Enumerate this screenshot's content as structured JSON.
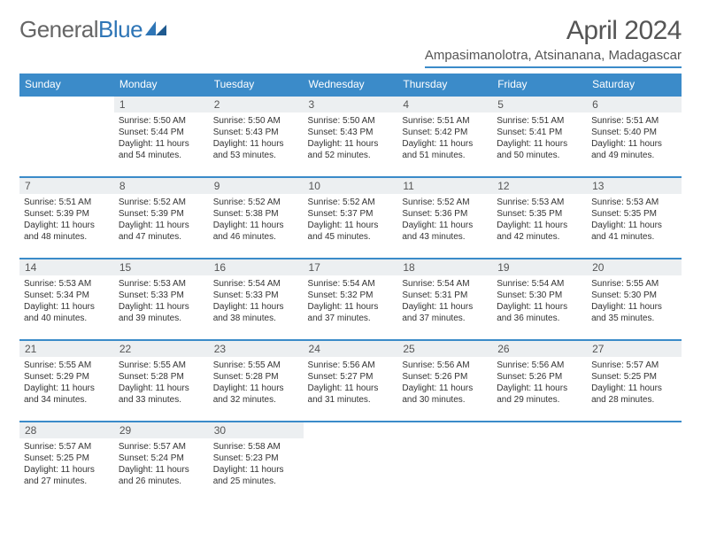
{
  "header": {
    "logo_general": "General",
    "logo_blue": "Blue",
    "title": "April 2024",
    "location": "Ampasimanolotra, Atsinanana, Madagascar"
  },
  "colors": {
    "header_bar": "#3b8bc9",
    "daynum_bg": "#eceff1",
    "text": "#333333",
    "title_text": "#555555"
  },
  "weekdays": [
    "Sunday",
    "Monday",
    "Tuesday",
    "Wednesday",
    "Thursday",
    "Friday",
    "Saturday"
  ],
  "weeks": [
    [
      {
        "day": "",
        "lines": []
      },
      {
        "day": "1",
        "lines": [
          "Sunrise: 5:50 AM",
          "Sunset: 5:44 PM",
          "Daylight: 11 hours",
          "and 54 minutes."
        ]
      },
      {
        "day": "2",
        "lines": [
          "Sunrise: 5:50 AM",
          "Sunset: 5:43 PM",
          "Daylight: 11 hours",
          "and 53 minutes."
        ]
      },
      {
        "day": "3",
        "lines": [
          "Sunrise: 5:50 AM",
          "Sunset: 5:43 PM",
          "Daylight: 11 hours",
          "and 52 minutes."
        ]
      },
      {
        "day": "4",
        "lines": [
          "Sunrise: 5:51 AM",
          "Sunset: 5:42 PM",
          "Daylight: 11 hours",
          "and 51 minutes."
        ]
      },
      {
        "day": "5",
        "lines": [
          "Sunrise: 5:51 AM",
          "Sunset: 5:41 PM",
          "Daylight: 11 hours",
          "and 50 minutes."
        ]
      },
      {
        "day": "6",
        "lines": [
          "Sunrise: 5:51 AM",
          "Sunset: 5:40 PM",
          "Daylight: 11 hours",
          "and 49 minutes."
        ]
      }
    ],
    [
      {
        "day": "7",
        "lines": [
          "Sunrise: 5:51 AM",
          "Sunset: 5:39 PM",
          "Daylight: 11 hours",
          "and 48 minutes."
        ]
      },
      {
        "day": "8",
        "lines": [
          "Sunrise: 5:52 AM",
          "Sunset: 5:39 PM",
          "Daylight: 11 hours",
          "and 47 minutes."
        ]
      },
      {
        "day": "9",
        "lines": [
          "Sunrise: 5:52 AM",
          "Sunset: 5:38 PM",
          "Daylight: 11 hours",
          "and 46 minutes."
        ]
      },
      {
        "day": "10",
        "lines": [
          "Sunrise: 5:52 AM",
          "Sunset: 5:37 PM",
          "Daylight: 11 hours",
          "and 45 minutes."
        ]
      },
      {
        "day": "11",
        "lines": [
          "Sunrise: 5:52 AM",
          "Sunset: 5:36 PM",
          "Daylight: 11 hours",
          "and 43 minutes."
        ]
      },
      {
        "day": "12",
        "lines": [
          "Sunrise: 5:53 AM",
          "Sunset: 5:35 PM",
          "Daylight: 11 hours",
          "and 42 minutes."
        ]
      },
      {
        "day": "13",
        "lines": [
          "Sunrise: 5:53 AM",
          "Sunset: 5:35 PM",
          "Daylight: 11 hours",
          "and 41 minutes."
        ]
      }
    ],
    [
      {
        "day": "14",
        "lines": [
          "Sunrise: 5:53 AM",
          "Sunset: 5:34 PM",
          "Daylight: 11 hours",
          "and 40 minutes."
        ]
      },
      {
        "day": "15",
        "lines": [
          "Sunrise: 5:53 AM",
          "Sunset: 5:33 PM",
          "Daylight: 11 hours",
          "and 39 minutes."
        ]
      },
      {
        "day": "16",
        "lines": [
          "Sunrise: 5:54 AM",
          "Sunset: 5:33 PM",
          "Daylight: 11 hours",
          "and 38 minutes."
        ]
      },
      {
        "day": "17",
        "lines": [
          "Sunrise: 5:54 AM",
          "Sunset: 5:32 PM",
          "Daylight: 11 hours",
          "and 37 minutes."
        ]
      },
      {
        "day": "18",
        "lines": [
          "Sunrise: 5:54 AM",
          "Sunset: 5:31 PM",
          "Daylight: 11 hours",
          "and 37 minutes."
        ]
      },
      {
        "day": "19",
        "lines": [
          "Sunrise: 5:54 AM",
          "Sunset: 5:30 PM",
          "Daylight: 11 hours",
          "and 36 minutes."
        ]
      },
      {
        "day": "20",
        "lines": [
          "Sunrise: 5:55 AM",
          "Sunset: 5:30 PM",
          "Daylight: 11 hours",
          "and 35 minutes."
        ]
      }
    ],
    [
      {
        "day": "21",
        "lines": [
          "Sunrise: 5:55 AM",
          "Sunset: 5:29 PM",
          "Daylight: 11 hours",
          "and 34 minutes."
        ]
      },
      {
        "day": "22",
        "lines": [
          "Sunrise: 5:55 AM",
          "Sunset: 5:28 PM",
          "Daylight: 11 hours",
          "and 33 minutes."
        ]
      },
      {
        "day": "23",
        "lines": [
          "Sunrise: 5:55 AM",
          "Sunset: 5:28 PM",
          "Daylight: 11 hours",
          "and 32 minutes."
        ]
      },
      {
        "day": "24",
        "lines": [
          "Sunrise: 5:56 AM",
          "Sunset: 5:27 PM",
          "Daylight: 11 hours",
          "and 31 minutes."
        ]
      },
      {
        "day": "25",
        "lines": [
          "Sunrise: 5:56 AM",
          "Sunset: 5:26 PM",
          "Daylight: 11 hours",
          "and 30 minutes."
        ]
      },
      {
        "day": "26",
        "lines": [
          "Sunrise: 5:56 AM",
          "Sunset: 5:26 PM",
          "Daylight: 11 hours",
          "and 29 minutes."
        ]
      },
      {
        "day": "27",
        "lines": [
          "Sunrise: 5:57 AM",
          "Sunset: 5:25 PM",
          "Daylight: 11 hours",
          "and 28 minutes."
        ]
      }
    ],
    [
      {
        "day": "28",
        "lines": [
          "Sunrise: 5:57 AM",
          "Sunset: 5:25 PM",
          "Daylight: 11 hours",
          "and 27 minutes."
        ]
      },
      {
        "day": "29",
        "lines": [
          "Sunrise: 5:57 AM",
          "Sunset: 5:24 PM",
          "Daylight: 11 hours",
          "and 26 minutes."
        ]
      },
      {
        "day": "30",
        "lines": [
          "Sunrise: 5:58 AM",
          "Sunset: 5:23 PM",
          "Daylight: 11 hours",
          "and 25 minutes."
        ]
      },
      {
        "day": "",
        "lines": []
      },
      {
        "day": "",
        "lines": []
      },
      {
        "day": "",
        "lines": []
      },
      {
        "day": "",
        "lines": []
      }
    ]
  ]
}
